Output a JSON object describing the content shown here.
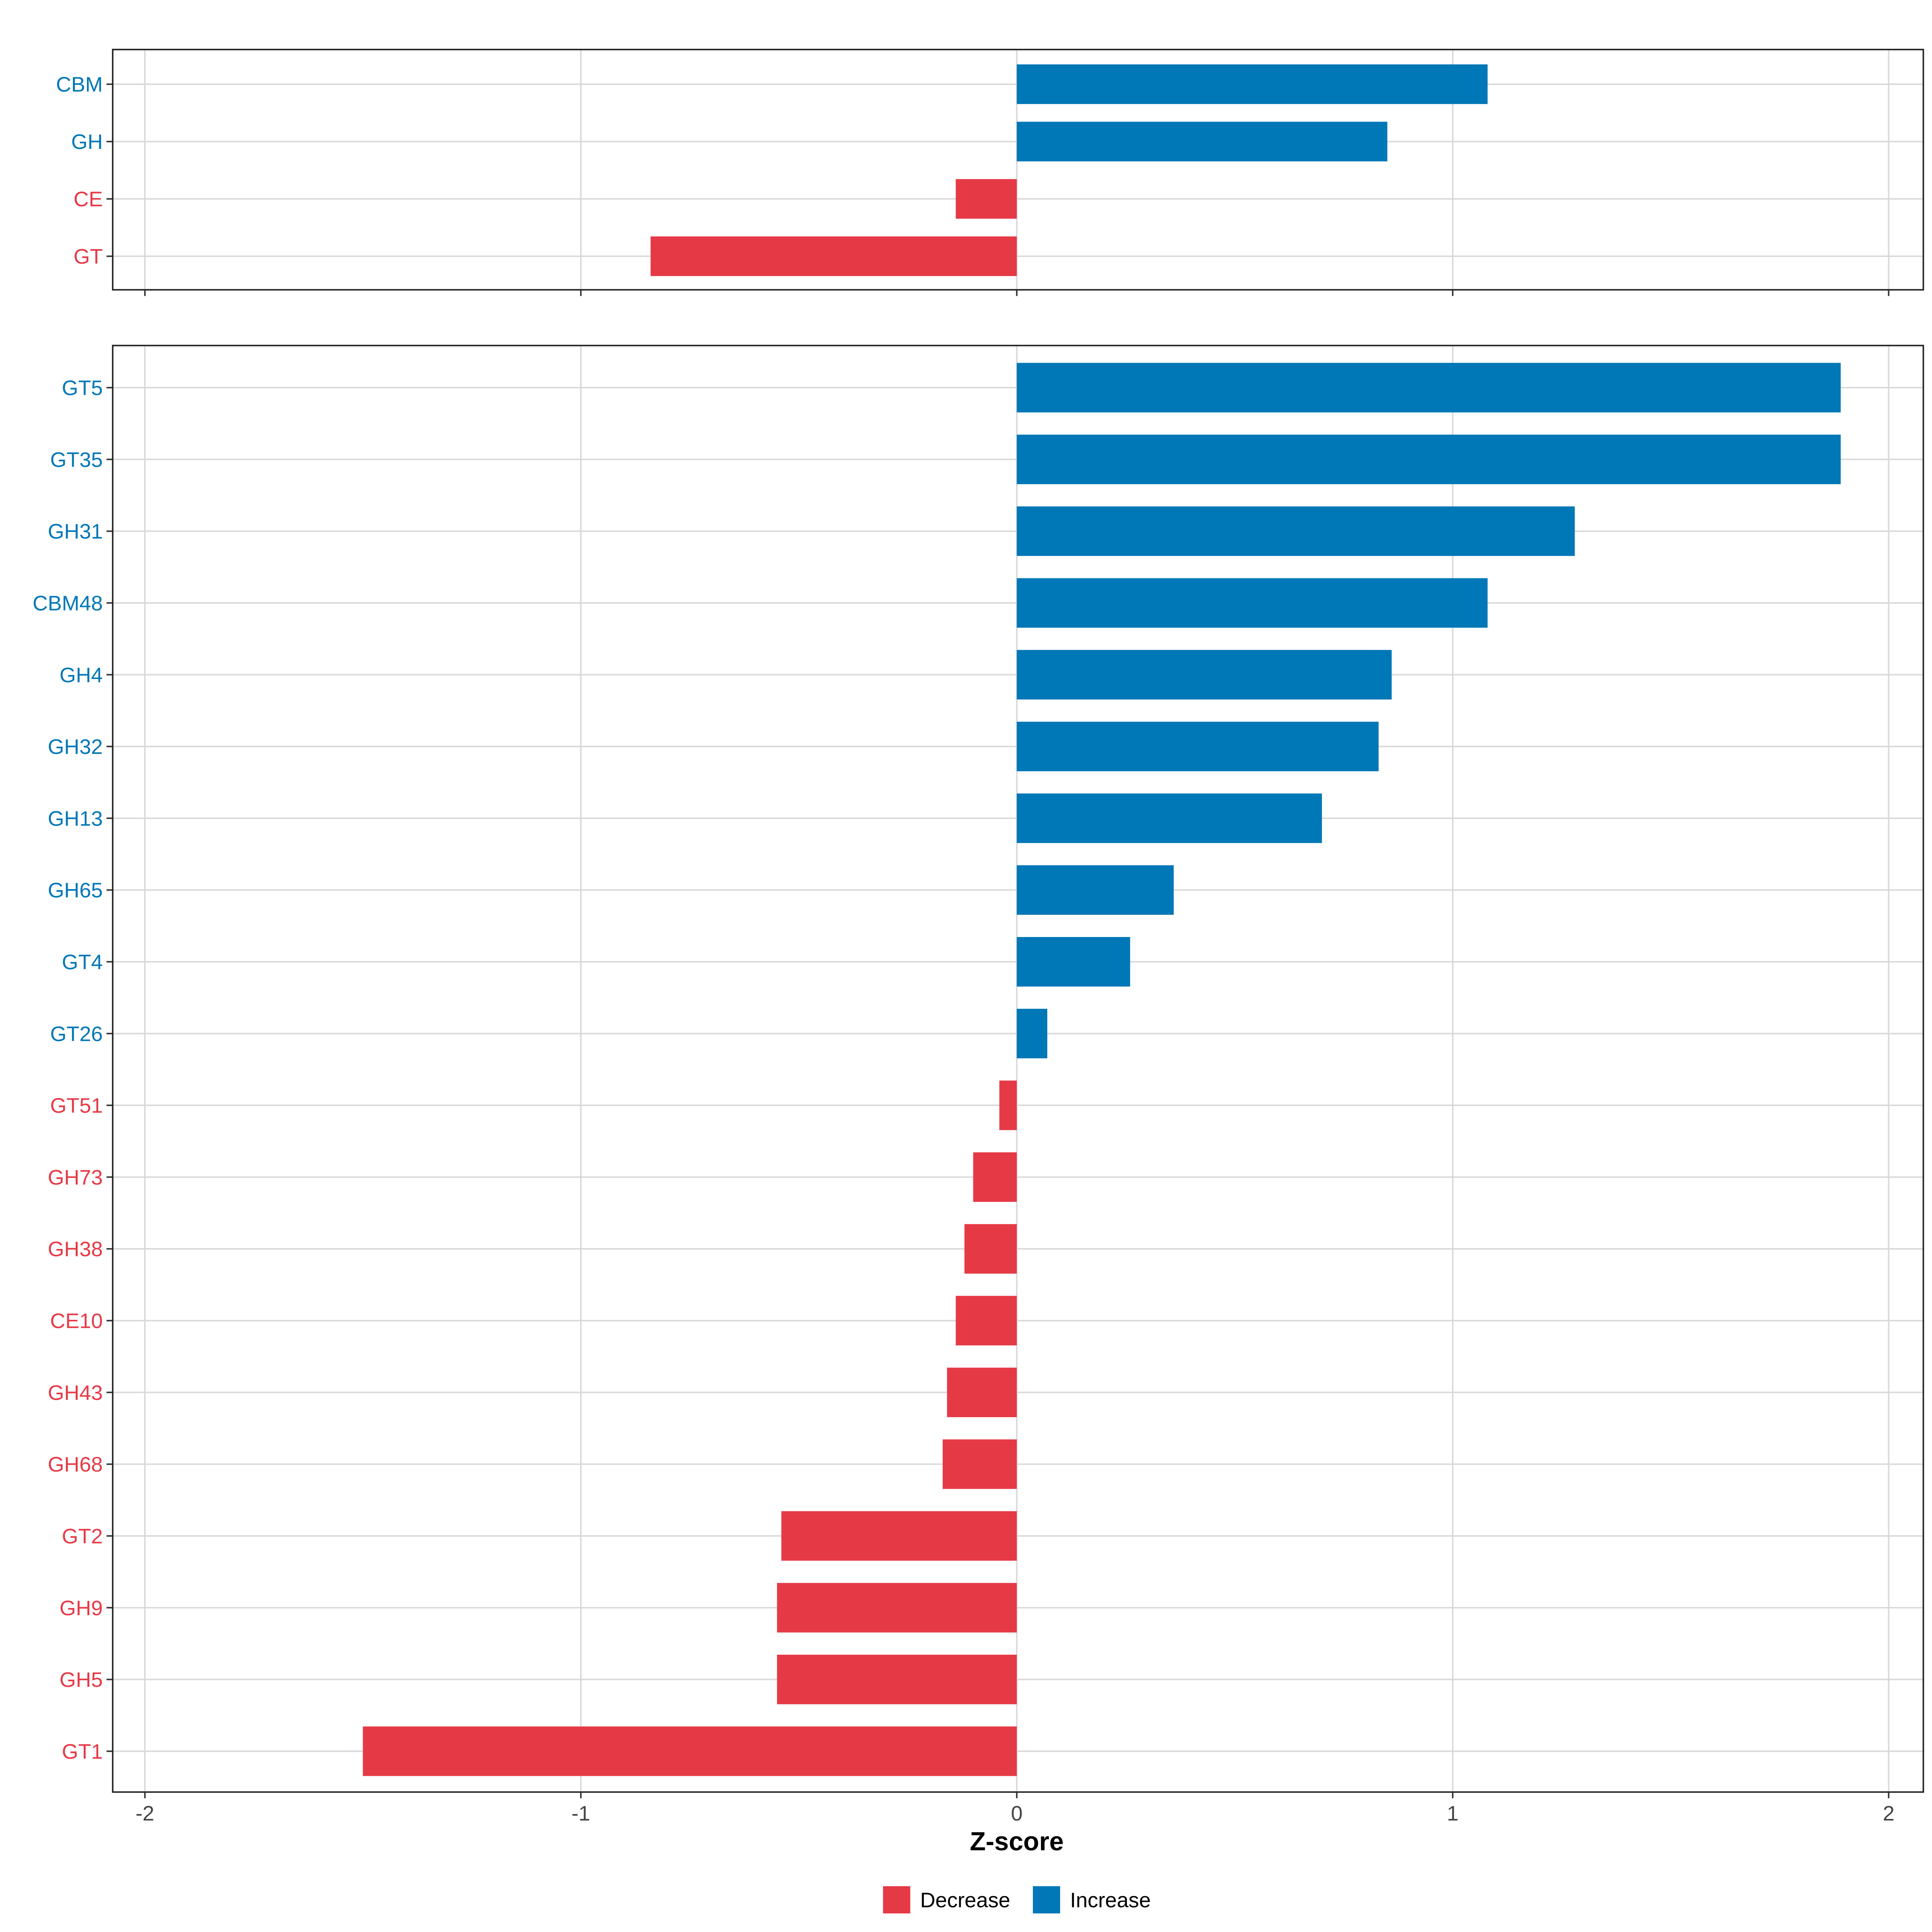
{
  "chart_data": [
    {
      "type": "bar",
      "orientation": "horizontal",
      "panel": "top",
      "categories": [
        "CBM",
        "GH",
        "CE",
        "GT"
      ],
      "values": [
        1.08,
        0.85,
        -0.14,
        -0.84
      ],
      "xlim": [
        -2.07,
        2.08
      ]
    },
    {
      "type": "bar",
      "orientation": "horizontal",
      "panel": "bottom",
      "categories": [
        "GT5",
        "GT35",
        "GH31",
        "CBM48",
        "GH4",
        "GH32",
        "GH13",
        "GH65",
        "GT4",
        "GT26",
        "GT51",
        "GH73",
        "GH38",
        "CE10",
        "GH43",
        "GH68",
        "GT2",
        "GH9",
        "GH5",
        "GT1"
      ],
      "values": [
        1.89,
        1.89,
        1.28,
        1.08,
        0.86,
        0.83,
        0.7,
        0.36,
        0.26,
        0.07,
        -0.04,
        -0.1,
        -0.12,
        -0.14,
        -0.16,
        -0.17,
        -0.54,
        -0.55,
        -0.55,
        -1.5
      ],
      "xlim": [
        -2.07,
        2.08
      ]
    }
  ],
  "axis": {
    "xlabel": "Z-score",
    "xticks": [
      -2,
      -1,
      0,
      1,
      2
    ],
    "xtick_labels": [
      "-2",
      "-1",
      "0",
      "1",
      "2"
    ]
  },
  "legend": {
    "placement": "bottom",
    "items": [
      {
        "label": "Decrease",
        "color": "#E63946"
      },
      {
        "label": "Increase",
        "color": "#0077B6"
      }
    ]
  },
  "colors": {
    "decrease": "#E63946",
    "increase": "#0077B6"
  }
}
